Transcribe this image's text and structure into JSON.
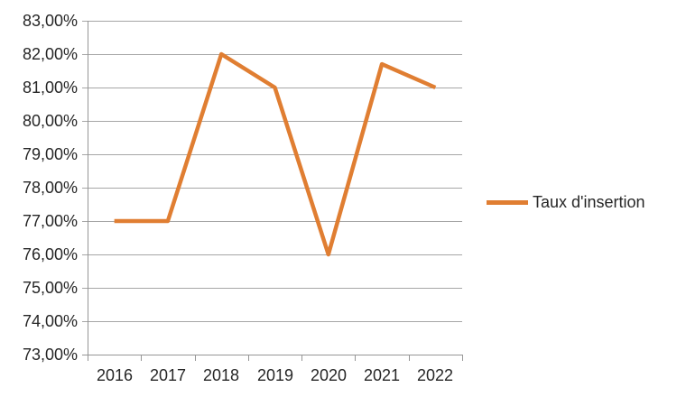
{
  "chart_data": {
    "type": "line",
    "title": "",
    "xlabel": "",
    "ylabel": "",
    "categories": [
      "2016",
      "2017",
      "2018",
      "2019",
      "2020",
      "2021",
      "2022"
    ],
    "series": [
      {
        "name": "Taux d'insertion",
        "values": [
          77,
          77,
          82,
          81,
          76,
          81.7,
          81
        ],
        "color": "#E07E32"
      }
    ],
    "ylim": [
      73,
      83
    ],
    "ytick_step": 1,
    "ytick_labels": [
      "83,00%",
      "82,00%",
      "81,00%",
      "80,00%",
      "79,00%",
      "78,00%",
      "77,00%",
      "76,00%",
      "75,00%",
      "74,00%",
      "73,00%"
    ],
    "grid": true,
    "legend_position": "right",
    "axis_color": "#969696",
    "gridline_color": "#A6A6A6",
    "text_color": "#262626"
  }
}
